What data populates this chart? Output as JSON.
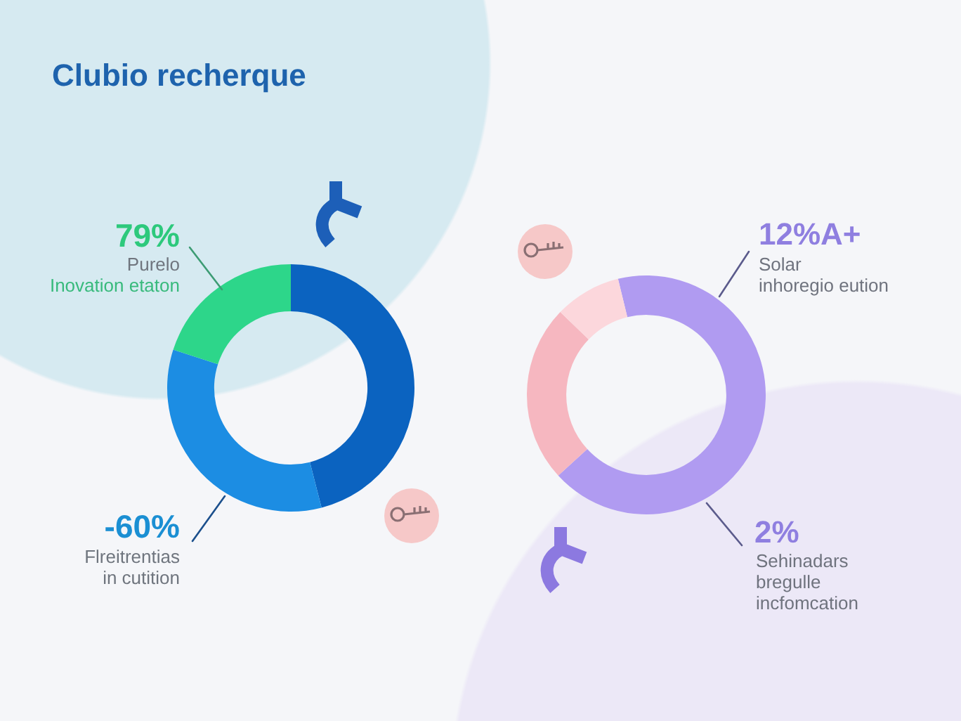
{
  "chart_data": [
    {
      "type": "donut",
      "title": "Clubio recherque",
      "categories": [
        null,
        null,
        null
      ],
      "values": [
        46,
        34,
        20
      ],
      "colors": [
        "#0b63c0",
        "#1c8de3",
        "#2dd68a"
      ],
      "annotations": [
        "79%",
        "Purelo",
        "Inovation etaton",
        "-60%",
        "Flreitrentias\nin cutition"
      ]
    },
    {
      "type": "donut",
      "categories": [
        null,
        null,
        null
      ],
      "values": [
        67,
        24,
        9
      ],
      "colors": [
        "#b09bf1",
        "#f6b7c0",
        "#fcd7dc"
      ],
      "annotations": [
        "12%A+",
        "Solar\ninhoregio eution",
        "2%",
        "Sehinadars\nbregulle\nincfomcation"
      ]
    }
  ]
}
